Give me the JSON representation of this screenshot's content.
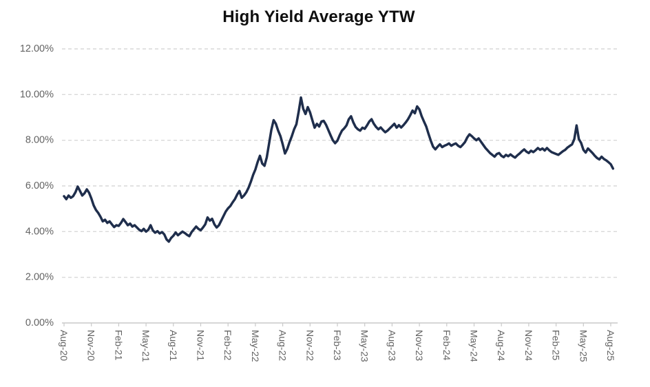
{
  "title": "High Yield Average YTW",
  "colors": {
    "line": "#1f2e4c",
    "grid": "#d9d9d9",
    "axis": "#c9c9c9",
    "tick_label": "#636363",
    "title_text": "#0f0f0f",
    "background": "#ffffff"
  },
  "chart_data": {
    "type": "line",
    "title": "High Yield Average YTW",
    "xlabel": "",
    "ylabel": "",
    "ylim": [
      0,
      12
    ],
    "y_tick_step": 2,
    "grid": "horizontal-dashed",
    "legend": "none",
    "x_tick_labels": [
      "Aug-20",
      "Nov-20",
      "Feb-21",
      "May-21",
      "Aug-21",
      "Nov-21",
      "Feb-22",
      "May-22",
      "Aug-22",
      "Nov-22",
      "Feb-23",
      "May-23",
      "Aug-23",
      "Nov-23",
      "Feb-24",
      "May-24",
      "Aug-24",
      "Nov-24",
      "Feb-25",
      "May-25",
      "Aug-25"
    ],
    "y_tick_labels_top_to_bottom": [
      "12.00%",
      "10.00%",
      "8.00%",
      "6.00%",
      "4.00%",
      "2.00%",
      "0.00%"
    ],
    "series": [
      {
        "name": "High Yield Average YTW",
        "unit": "percent",
        "start": "Aug-2020",
        "points_per_month": 4,
        "values": [
          5.55,
          5.42,
          5.58,
          5.48,
          5.55,
          5.72,
          5.97,
          5.78,
          5.58,
          5.68,
          5.85,
          5.7,
          5.45,
          5.15,
          4.95,
          4.82,
          4.65,
          4.45,
          4.52,
          4.38,
          4.45,
          4.32,
          4.2,
          4.28,
          4.25,
          4.38,
          4.55,
          4.42,
          4.28,
          4.35,
          4.22,
          4.28,
          4.18,
          4.08,
          4.02,
          4.12,
          4.0,
          4.08,
          4.28,
          4.05,
          3.95,
          4.02,
          3.92,
          3.98,
          3.88,
          3.66,
          3.56,
          3.72,
          3.82,
          3.96,
          3.84,
          3.92,
          4.0,
          3.94,
          3.86,
          3.8,
          3.98,
          4.1,
          4.22,
          4.12,
          4.06,
          4.18,
          4.32,
          4.62,
          4.48,
          4.56,
          4.32,
          4.18,
          4.28,
          4.48,
          4.68,
          4.88,
          5.02,
          5.12,
          5.28,
          5.42,
          5.62,
          5.78,
          5.48,
          5.58,
          5.72,
          5.92,
          6.18,
          6.48,
          6.72,
          7.05,
          7.32,
          6.98,
          6.88,
          7.25,
          7.85,
          8.45,
          8.88,
          8.72,
          8.42,
          8.18,
          7.82,
          7.42,
          7.62,
          7.92,
          8.18,
          8.48,
          8.7,
          9.25,
          9.87,
          9.38,
          9.15,
          9.45,
          9.22,
          8.88,
          8.55,
          8.72,
          8.6,
          8.82,
          8.85,
          8.68,
          8.45,
          8.22,
          8.0,
          7.87,
          7.98,
          8.22,
          8.42,
          8.52,
          8.65,
          8.92,
          9.05,
          8.78,
          8.58,
          8.48,
          8.42,
          8.55,
          8.5,
          8.65,
          8.82,
          8.92,
          8.72,
          8.58,
          8.48,
          8.56,
          8.45,
          8.35,
          8.42,
          8.52,
          8.62,
          8.72,
          8.55,
          8.66,
          8.56,
          8.66,
          8.78,
          8.92,
          9.1,
          9.3,
          9.18,
          9.48,
          9.35,
          9.05,
          8.82,
          8.6,
          8.28,
          7.98,
          7.72,
          7.6,
          7.72,
          7.82,
          7.7,
          7.76,
          7.8,
          7.86,
          7.76,
          7.82,
          7.86,
          7.76,
          7.7,
          7.8,
          7.92,
          8.12,
          8.26,
          8.18,
          8.08,
          8.0,
          8.08,
          7.94,
          7.8,
          7.66,
          7.55,
          7.44,
          7.36,
          7.28,
          7.4,
          7.44,
          7.32,
          7.26,
          7.36,
          7.3,
          7.38,
          7.3,
          7.24,
          7.34,
          7.42,
          7.52,
          7.6,
          7.5,
          7.44,
          7.54,
          7.48,
          7.56,
          7.66,
          7.58,
          7.64,
          7.55,
          7.66,
          7.56,
          7.48,
          7.44,
          7.4,
          7.36,
          7.44,
          7.52,
          7.58,
          7.68,
          7.75,
          7.82,
          8.05,
          8.65,
          8.05,
          7.88,
          7.58,
          7.46,
          7.64,
          7.54,
          7.44,
          7.32,
          7.22,
          7.16,
          7.28,
          7.18,
          7.12,
          7.04,
          6.95,
          6.76
        ]
      }
    ]
  }
}
